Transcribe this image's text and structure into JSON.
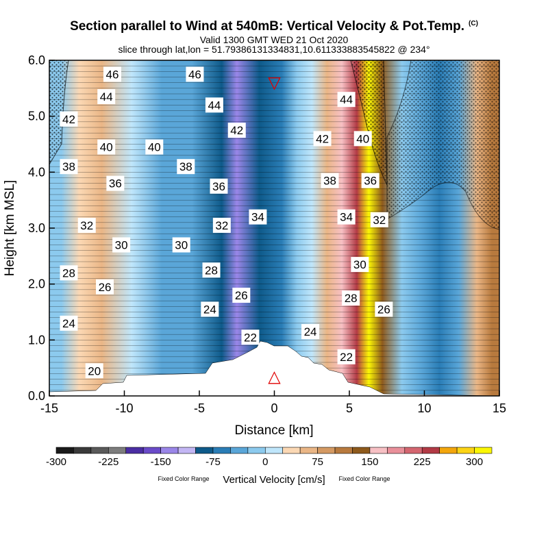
{
  "title": {
    "main": "Section parallel to Wind at 540mB: Vertical Velocity & Pot.Temp.",
    "copyright": "(C)",
    "valid": "Valid 1300 GMT WED 21 Oct 2020",
    "slice": "slice through lat,lon = 51.79386131334831,10.611333883545822 @ 234°"
  },
  "chart_data": {
    "type": "heatmap",
    "xlabel": "Distance [km]",
    "ylabel": "Height [km MSL]",
    "xlim": [
      -15,
      15
    ],
    "ylim": [
      0,
      6
    ],
    "x_ticks": [
      "-15",
      "-10",
      "-5",
      "0",
      "5",
      "10",
      "15"
    ],
    "y_ticks": [
      "0.0",
      "1.0",
      "2.0",
      "3.0",
      "4.0",
      "5.0",
      "6.0"
    ],
    "vertical_velocity_bands": [
      {
        "x": -14.2,
        "vv": -20
      },
      {
        "x": -13.0,
        "vv": 40
      },
      {
        "x": -11.5,
        "vv": 55
      },
      {
        "x": -9.5,
        "vv": 20
      },
      {
        "x": -7.5,
        "vv": -30
      },
      {
        "x": -5.5,
        "vv": -40
      },
      {
        "x": -3.5,
        "vv": -90
      },
      {
        "x": -2.5,
        "vv": -130
      },
      {
        "x": -1.0,
        "vv": -100
      },
      {
        "x": 0.5,
        "vv": -70
      },
      {
        "x": 1.5,
        "vv": -20
      },
      {
        "x": 2.5,
        "vv": 15
      },
      {
        "x": 3.5,
        "vv": 70
      },
      {
        "x": 4.5,
        "vv": 150
      },
      {
        "x": 5.5,
        "vv": 240
      },
      {
        "x": 6.3,
        "vv": 300
      },
      {
        "x": 7.2,
        "vv": 130
      },
      {
        "x": 8.5,
        "vv": -20
      },
      {
        "x": 9.8,
        "vv": -45
      },
      {
        "x": 11.0,
        "vv": -60
      },
      {
        "x": 12.3,
        "vv": -50
      },
      {
        "x": 13.5,
        "vv": 60
      },
      {
        "x": 14.5,
        "vv": 110
      }
    ],
    "theta_contour_labels": [
      {
        "text": "46",
        "x": -10.8,
        "y": 5.75
      },
      {
        "text": "44",
        "x": -11.2,
        "y": 5.35
      },
      {
        "text": "42",
        "x": -13.7,
        "y": 4.95
      },
      {
        "text": "40",
        "x": -11.2,
        "y": 4.45
      },
      {
        "text": "40",
        "x": -8.0,
        "y": 4.45
      },
      {
        "text": "38",
        "x": -13.7,
        "y": 4.1
      },
      {
        "text": "36",
        "x": -10.6,
        "y": 3.8
      },
      {
        "text": "38",
        "x": -5.9,
        "y": 4.1
      },
      {
        "text": "46",
        "x": -5.3,
        "y": 5.75
      },
      {
        "text": "44",
        "x": -4.0,
        "y": 5.2
      },
      {
        "text": "42",
        "x": -2.5,
        "y": 4.75
      },
      {
        "text": "36",
        "x": -3.7,
        "y": 3.75
      },
      {
        "text": "34",
        "x": -1.1,
        "y": 3.2
      },
      {
        "text": "32",
        "x": -3.5,
        "y": 3.05
      },
      {
        "text": "32",
        "x": -12.5,
        "y": 3.05
      },
      {
        "text": "30",
        "x": -10.2,
        "y": 2.7
      },
      {
        "text": "30",
        "x": -6.2,
        "y": 2.7
      },
      {
        "text": "28",
        "x": -13.7,
        "y": 2.2
      },
      {
        "text": "28",
        "x": -4.2,
        "y": 2.25
      },
      {
        "text": "26",
        "x": -11.3,
        "y": 1.95
      },
      {
        "text": "26",
        "x": -2.2,
        "y": 1.8
      },
      {
        "text": "24",
        "x": -13.7,
        "y": 1.3
      },
      {
        "text": "24",
        "x": -4.3,
        "y": 1.55
      },
      {
        "text": "22",
        "x": -1.6,
        "y": 1.05
      },
      {
        "text": "20",
        "x": -12.0,
        "y": 0.45
      },
      {
        "text": "44",
        "x": 4.8,
        "y": 5.3
      },
      {
        "text": "42",
        "x": 3.2,
        "y": 4.6
      },
      {
        "text": "40",
        "x": 5.9,
        "y": 4.6
      },
      {
        "text": "38",
        "x": 3.7,
        "y": 3.85
      },
      {
        "text": "36",
        "x": 6.4,
        "y": 3.85
      },
      {
        "text": "34",
        "x": 4.8,
        "y": 3.2
      },
      {
        "text": "32",
        "x": 7.0,
        "y": 3.15
      },
      {
        "text": "30",
        "x": 5.7,
        "y": 2.35
      },
      {
        "text": "28",
        "x": 5.1,
        "y": 1.75
      },
      {
        "text": "26",
        "x": 7.3,
        "y": 1.55
      },
      {
        "text": "24",
        "x": 2.4,
        "y": 1.15
      },
      {
        "text": "22",
        "x": 4.8,
        "y": 0.7
      }
    ],
    "markers": [
      {
        "symbol": "▽",
        "x": 0,
        "y": 5.6,
        "color": "#e00000"
      },
      {
        "symbol": "△",
        "x": 0,
        "y": 0.35,
        "color": "#e00000"
      }
    ]
  },
  "colorbar": {
    "colors": [
      "#1a1a1a",
      "#3a3a3a",
      "#5a5a5a",
      "#7d7d7d",
      "#4b2ea3",
      "#6a4bc9",
      "#9a86e8",
      "#c3b6f4",
      "#0e5a8a",
      "#2a7db6",
      "#5aa6d8",
      "#8ccaee",
      "#bfe6fb",
      "#fbd8b4",
      "#eab686",
      "#d59a63",
      "#b87a3e",
      "#8e5a1c",
      "#f7c0c4",
      "#e9909a",
      "#d46670",
      "#b23a45",
      "#f3a60c",
      "#fcd415",
      "#fbf704"
    ],
    "tick_labels": [
      "-300",
      "-225",
      "-150",
      "-75",
      "0",
      "75",
      "150",
      "225",
      "300"
    ],
    "label": "Vertical Velocity [cm/s]",
    "side_note_left": "Fixed Color Range",
    "side_note_right": "Fixed Color Range"
  }
}
